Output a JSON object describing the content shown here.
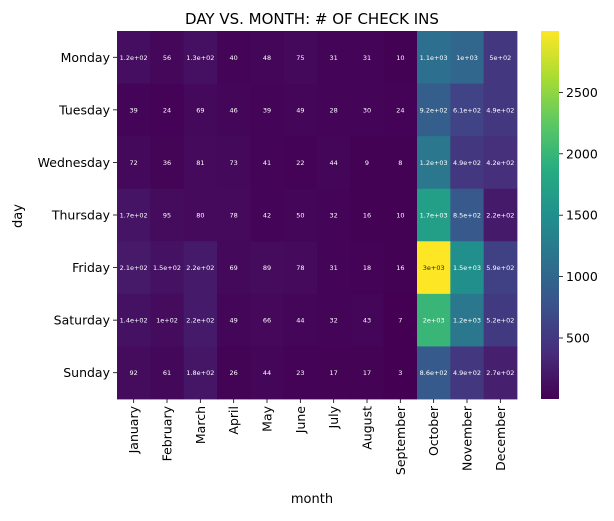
{
  "chart_data": {
    "type": "heatmap",
    "title": "DAY VS. MONTH: # OF CHECK INS",
    "xlabel": "month",
    "ylabel": "day",
    "x_categories": [
      "January",
      "February",
      "March",
      "April",
      "May",
      "June",
      "July",
      "August",
      "September",
      "October",
      "November",
      "December"
    ],
    "y_categories": [
      "Monday",
      "Tuesday",
      "Wednesday",
      "Thursday",
      "Friday",
      "Saturday",
      "Sunday"
    ],
    "values": [
      [
        120,
        56,
        130,
        40,
        48,
        75,
        31,
        31,
        10,
        1100,
        1000,
        500
      ],
      [
        39,
        24,
        69,
        46,
        39,
        49,
        28,
        30,
        24,
        920,
        610,
        490
      ],
      [
        72,
        36,
        81,
        73,
        41,
        22,
        44,
        9,
        8,
        1200,
        490,
        420
      ],
      [
        170,
        95,
        80,
        78,
        42,
        50,
        32,
        16,
        10,
        1700,
        850,
        220
      ],
      [
        210,
        150,
        220,
        69,
        89,
        78,
        31,
        18,
        16,
        3000,
        1500,
        590
      ],
      [
        140,
        100,
        220,
        49,
        66,
        44,
        32,
        43,
        7,
        2000,
        1200,
        520
      ],
      [
        92,
        61,
        180,
        26,
        44,
        23,
        17,
        17,
        3,
        860,
        490,
        270
      ]
    ],
    "cell_labels": [
      [
        "1.2e+02",
        "56",
        "1.3e+02",
        "40",
        "48",
        "75",
        "31",
        "31",
        "10",
        "1.1e+03",
        "1e+03",
        "5e+02"
      ],
      [
        "39",
        "24",
        "69",
        "46",
        "39",
        "49",
        "28",
        "30",
        "24",
        "9.2e+02",
        "6.1e+02",
        "4.9e+02"
      ],
      [
        "72",
        "36",
        "81",
        "73",
        "41",
        "22",
        "44",
        "9",
        "8",
        "1.2e+03",
        "4.9e+02",
        "4.2e+02"
      ],
      [
        "1.7e+02",
        "95",
        "80",
        "78",
        "42",
        "50",
        "32",
        "16",
        "10",
        "1.7e+03",
        "8.5e+02",
        "2.2e+02"
      ],
      [
        "2.1e+02",
        "1.5e+02",
        "2.2e+02",
        "69",
        "89",
        "78",
        "31",
        "18",
        "16",
        "3e+03",
        "1.5e+03",
        "5.9e+02"
      ],
      [
        "1.4e+02",
        "1e+02",
        "2.2e+02",
        "49",
        "66",
        "44",
        "32",
        "43",
        "7",
        "2e+03",
        "1.2e+03",
        "5.2e+02"
      ],
      [
        "92",
        "61",
        "1.8e+02",
        "26",
        "44",
        "23",
        "17",
        "17",
        "3",
        "8.6e+02",
        "4.9e+02",
        "2.7e+02"
      ]
    ],
    "color_range": [
      3,
      3000
    ],
    "colormap": "viridis",
    "colorbar_ticks": [
      500,
      1000,
      1500,
      2000,
      2500
    ],
    "colorbar_tick_labels": [
      "500",
      "1000",
      "1500",
      "2000",
      "2500"
    ],
    "grid": false
  }
}
